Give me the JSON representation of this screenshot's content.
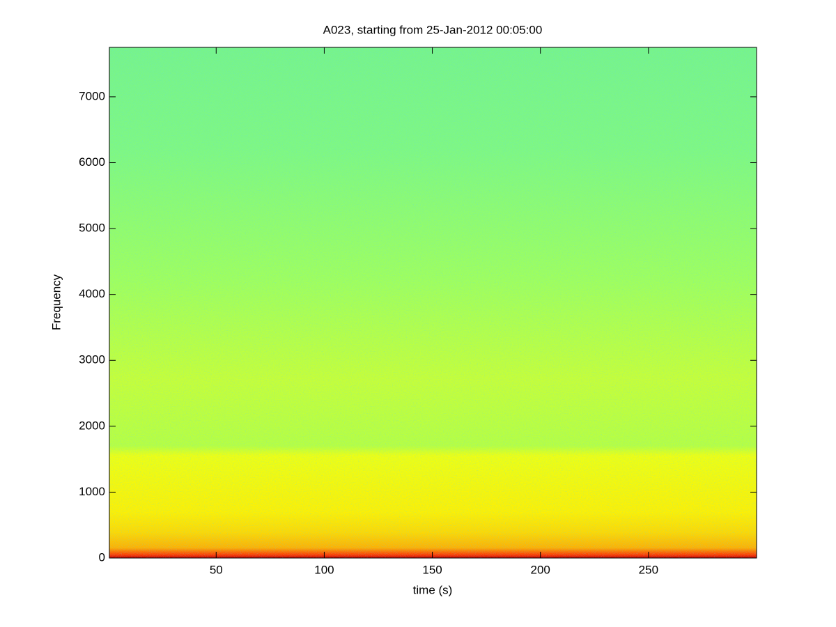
{
  "chart_data": {
    "type": "spectrogram",
    "title": "A023, starting from 25-Jan-2012 00:05:00",
    "x_label": "time (s)",
    "y_label": "Frequency",
    "xlim": [
      0.6,
      300
    ],
    "ylim": [
      0,
      7750
    ],
    "xticks": [
      50,
      100,
      150,
      200,
      250
    ],
    "yticks": [
      0,
      1000,
      2000,
      3000,
      4000,
      5000,
      6000,
      7000
    ]
  }
}
